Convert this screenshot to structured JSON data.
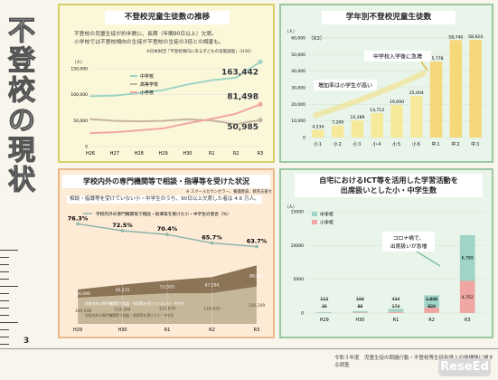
{
  "page": {
    "vertical_title": [
      "不",
      "登",
      "校",
      "の",
      "現",
      "状"
    ],
    "page_number": "3",
    "source": "令和３年度　児童生徒の問題行動・不登校等生徒指導上の諸課題に関する調査",
    "logo_text": "ReseEd"
  },
  "panel1": {
    "title": "不登校児童生徒数の推移",
    "desc_line1": "不登校の児童生徒が約半数に、長期（年間90日以上）欠席。",
    "desc_line2": "小学校では不登校傾向の生徒が不登校の生徒の3倍との調査も。",
    "note": "※日本財団「不登校傾向にある子どもの実態調査」（H30）",
    "unit": "（人）"
  },
  "panel2": {
    "title": "学年別不登校児童生徒数",
    "year": "（R3）",
    "callout1": "中学校入学後に急増",
    "callout2": "増加率は小学生が高い"
  },
  "panel3": {
    "title": "学校内外の専門機関等で相談・指導等を受けた状況",
    "footnote": "※ スクールカウンセラー、養護教諭、教育支援センター、民間団体等",
    "subtitle": "相談・指導等を受けていない小・中学生のうち、90日以上欠席した者は 4.6 万人。",
    "legend_line": "学校内外の専門機関等で相談・指導等を受けた小・中学生の割合（%）",
    "band1": "学校内外の専門機関等で相談・指導等を受けていない小・中学生",
    "band2": "学校内外の専門機関等で相談・指導等を受けた小・中学生"
  },
  "panel4": {
    "title_line1": "自宅におけるICT等を活用した学習活動を",
    "title_line2": "出席扱いとした小・中学生数",
    "callout_line1": "コロナ禍で、",
    "callout_line2": "出席扱いが急増"
  },
  "chart_data": [
    {
      "type": "line",
      "title": "不登校児童生徒数の推移",
      "x": [
        "H26",
        "H27",
        "H28",
        "H29",
        "H30",
        "R1",
        "R2",
        "R3"
      ],
      "ylim": [
        0,
        150000
      ],
      "yticks": [
        "150,000",
        "100,000",
        "50,000",
        "0"
      ],
      "ylabel": "（人）",
      "series": [
        {
          "name": "中学校",
          "values": [
            97000,
            98400,
            103200,
            108900,
            119700,
            127900,
            132800,
            163442
          ],
          "color": "#9fd4c6"
        },
        {
          "name": "高等学校",
          "values": [
            53000,
            49600,
            48600,
            49600,
            52700,
            50100,
            43100,
            50985
          ],
          "color": "#c6b59e"
        },
        {
          "name": "小学校",
          "values": [
            25900,
            27600,
            31200,
            35000,
            44800,
            53400,
            63400,
            81498
          ],
          "color": "#f0a6a3"
        }
      ],
      "labels": [
        "163,442",
        "81,498",
        "50,985"
      ]
    },
    {
      "type": "bar",
      "title": "学年別不登校児童生徒数",
      "categories": [
        "小１",
        "小２",
        "小３",
        "小４",
        "小５",
        "小６",
        "中１",
        "中２",
        "中３"
      ],
      "values": [
        4534,
        7269,
        10289,
        14712,
        19690,
        25004,
        45778,
        58740,
        58924
      ],
      "value_labels": [
        "4,534",
        "7,269",
        "10,289",
        "14,712",
        "19,690",
        "25,004",
        "45,778",
        "58,740",
        "58,924"
      ],
      "ylim": [
        0,
        60000
      ],
      "yticks": [
        "60,000",
        "50,000",
        "40,000",
        "30,000",
        "20,000",
        "10,000",
        "0"
      ],
      "ylabel": "（人）"
    },
    {
      "type": "area",
      "title": "学校内外の専門機関等で相談・指導等を受けた状況",
      "x": [
        "H29",
        "H30",
        "R1",
        "R2",
        "R3"
      ],
      "percent": [
        76.3,
        72.5,
        70.4,
        65.7,
        63.7
      ],
      "percent_labels": [
        "76.3%",
        "72.5%",
        "70.4%",
        "65.7%",
        "63.7%"
      ],
      "series": [
        {
          "name": "学校内外の専門機関等で相談・指導等を受けた小・中学生",
          "values": [
            109938,
            119354,
            127679,
            128833,
            156209
          ],
          "labels": [
            "109,938",
            "119,354",
            "127,679",
            "128,833",
            "156,209"
          ],
          "color": "#c5b89a"
        },
        {
          "name": "学校内外の専門機関等で相談・指導等を受けていない小・中学生",
          "values": [
            34096,
            45172,
            53593,
            67294,
            88931
          ],
          "labels": [
            "34,096",
            "45,172",
            "53,593",
            "67,294",
            "88,931"
          ],
          "color": "#8c7456"
        }
      ],
      "ylim": [
        0,
        250000
      ]
    },
    {
      "type": "bar",
      "title": "自宅におけるICT等を活用した学習活動を出席扱いとした小・中学生数",
      "categories": [
        "H29",
        "H30",
        "R1",
        "R2",
        "R3"
      ],
      "series": [
        {
          "name": "中学校",
          "values": [
            113,
            198,
            434,
            1806,
            6789
          ],
          "labels": [
            "113",
            "198",
            "434",
            "1,806",
            "6,789"
          ],
          "color": "#9fd4c6"
        },
        {
          "name": "小学校",
          "values": [
            36,
            88,
            174,
            820,
            4752
          ],
          "labels": [
            "36",
            "88",
            "174",
            "820",
            "4,752"
          ],
          "color": "#f0a6a3"
        }
      ],
      "ylim": [
        0,
        15000
      ],
      "yticks": [
        "15000",
        "10000",
        "5000",
        "0"
      ],
      "ylabel": "（人）"
    }
  ]
}
